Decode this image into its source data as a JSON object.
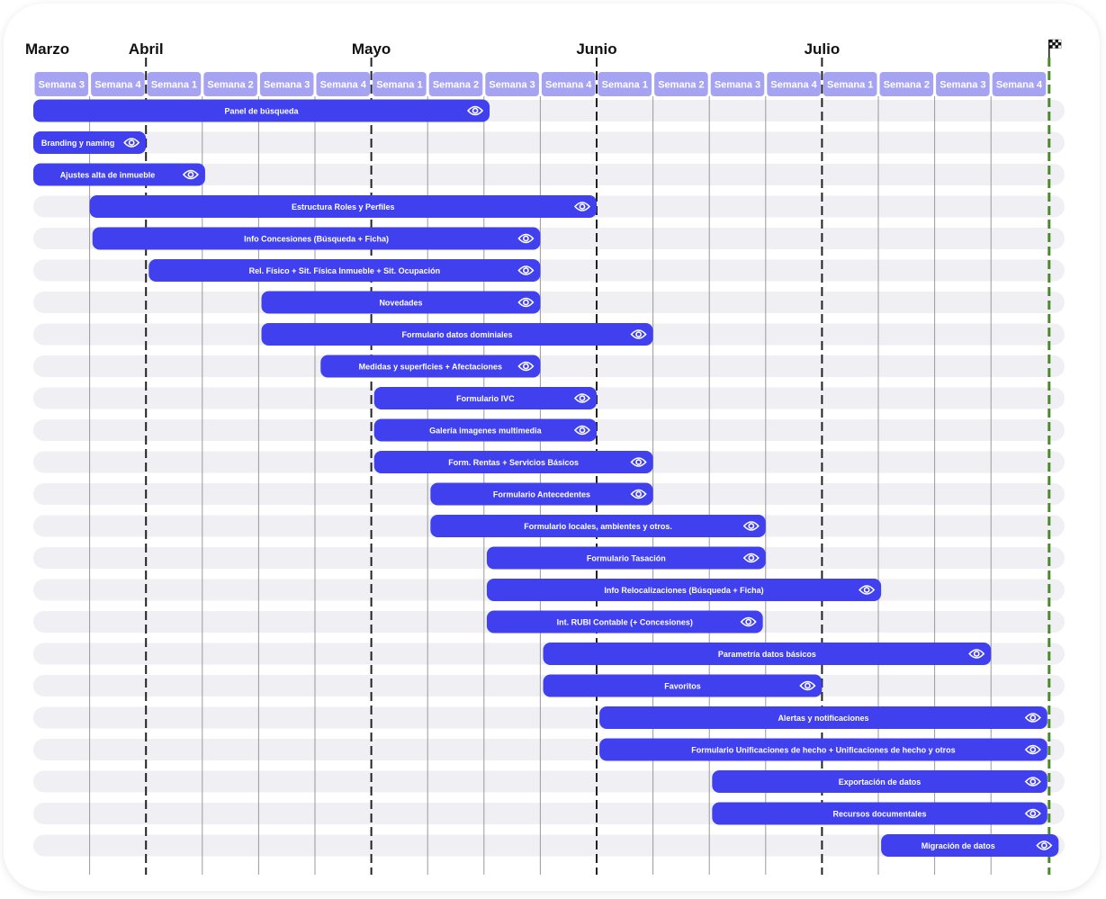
{
  "chart_data": {
    "type": "gantt",
    "months": [
      {
        "label": "Marzo",
        "start_week": 0
      },
      {
        "label": "Abril",
        "start_week": 2
      },
      {
        "label": "Mayo",
        "start_week": 6
      },
      {
        "label": "Junio",
        "start_week": 10
      },
      {
        "label": "Julio",
        "start_week": 14
      }
    ],
    "weeks": [
      "Semana 3",
      "Semana 4",
      "Semana 1",
      "Semana 2",
      "Semana 3",
      "Semana 4",
      "Semana 1",
      "Semana 2",
      "Semana 3",
      "Semana 4",
      "Semana 1",
      "Semana 2",
      "Semana 3",
      "Semana 4",
      "Semana 1",
      "Semana 2",
      "Semana 3",
      "Semana 4"
    ],
    "finish_icon": "checkered-flag-icon",
    "colors": {
      "bar": "#4040ee",
      "week_header": "#a7a3f3",
      "track": "#efeff4",
      "month_line": "#222222",
      "week_line": "#9a9a9a",
      "end_line": "#4a8a2a"
    },
    "tasks": [
      {
        "name": "Panel de búsqueda",
        "start": 0,
        "end": 8.1
      },
      {
        "name": "Branding y naming",
        "start": 0,
        "end": 2.0
      },
      {
        "name": "Ajustes alta de inmueble",
        "start": 0,
        "end": 3.05
      },
      {
        "name": "Estructura Roles y Perfiles",
        "start": 1.0,
        "end": 10.0
      },
      {
        "name": "Info Concesiones (Búsqueda + Ficha)",
        "start": 1.05,
        "end": 9.0
      },
      {
        "name": "Rel. Físico + Sit. Física Inmueble + Sit. Ocupación",
        "start": 2.05,
        "end": 9.0
      },
      {
        "name": "Novedades",
        "start": 4.05,
        "end": 9.0
      },
      {
        "name": "Formulario datos dominiales",
        "start": 4.05,
        "end": 11.0
      },
      {
        "name": "Medidas y superficies + Afectaciones",
        "start": 5.1,
        "end": 9.0
      },
      {
        "name": "Formulario IVC",
        "start": 6.05,
        "end": 10.0
      },
      {
        "name": "Galería imagenes multimedia",
        "start": 6.05,
        "end": 10.0
      },
      {
        "name": "Form. Rentas + Servicios Básicos",
        "start": 6.05,
        "end": 11.0
      },
      {
        "name": "Formulario Antecedentes",
        "start": 7.05,
        "end": 11.0
      },
      {
        "name": "Formulario locales, ambientes y otros.",
        "start": 7.05,
        "end": 13.0
      },
      {
        "name": "Formulario Tasación",
        "start": 8.05,
        "end": 13.0
      },
      {
        "name": "Info Relocalizaciones (Búsqueda + Ficha)",
        "start": 8.05,
        "end": 15.05
      },
      {
        "name": "Int. RUBI Contable (+ Concesiones)",
        "start": 8.05,
        "end": 12.95
      },
      {
        "name": "Parametría datos básicos",
        "start": 9.05,
        "end": 17.0
      },
      {
        "name": "Favoritos",
        "start": 9.05,
        "end": 14.0
      },
      {
        "name": "Alertas y notificaciones",
        "start": 10.05,
        "end": 18.0
      },
      {
        "name": "Formulario Unificaciones de hecho + Unificaciones de hecho y otros",
        "start": 10.05,
        "end": 18.0
      },
      {
        "name": "Exportación de datos",
        "start": 12.05,
        "end": 18.0
      },
      {
        "name": "Recursos documentales",
        "start": 12.05,
        "end": 18.0
      },
      {
        "name": "Migración de datos",
        "start": 15.05,
        "end": 18.2
      }
    ]
  }
}
